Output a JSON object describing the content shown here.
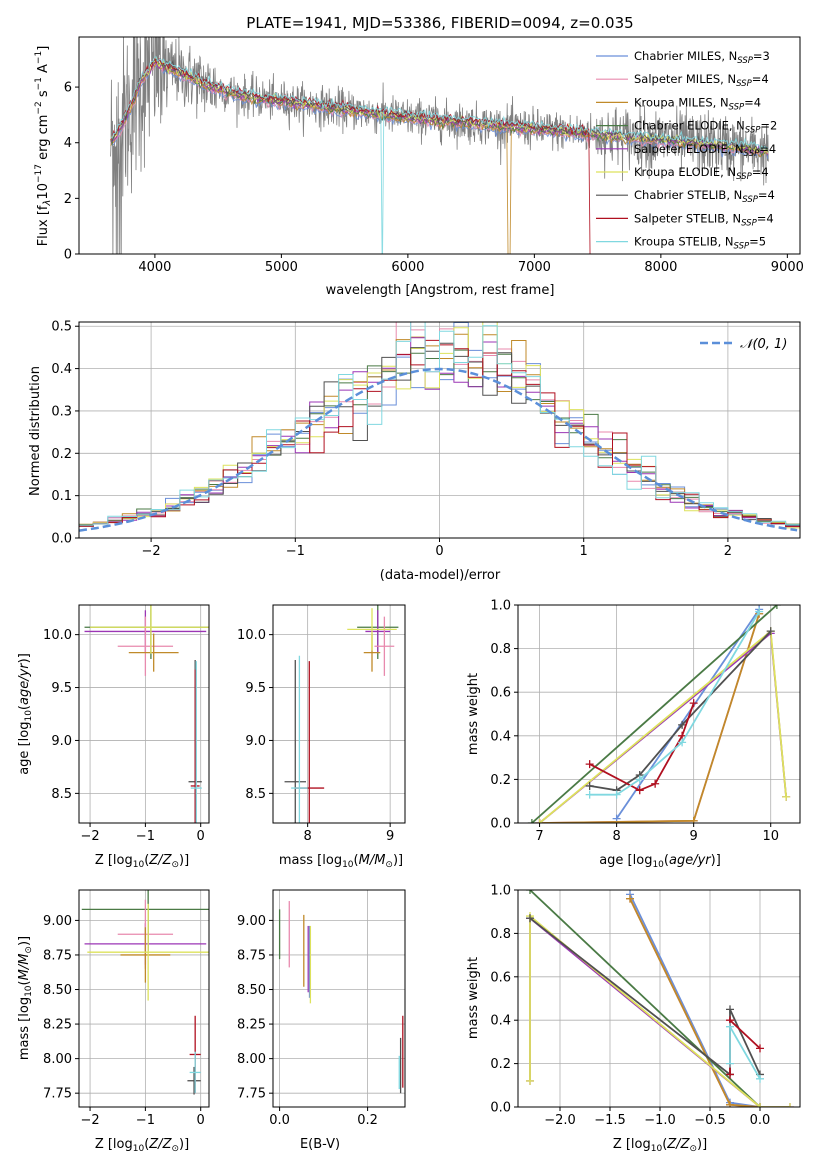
{
  "title": "PLATE=1941, MJD=53386, FIBERID=0094, z=0.035",
  "colors": {
    "Chabrier MILES": "#6a8fd9",
    "Salpeter MILES": "#e88aae",
    "Kroupa MILES": "#c08a2a",
    "Chabrier ELODIE": "#4a7a45",
    "Salpeter ELODIE": "#9b36b5",
    "Kroupa ELODIE": "#dde25c",
    "Chabrier STELIB": "#505050",
    "Salpeter STELIB": "#b01020",
    "Kroupa STELIB": "#80d8e0",
    "data": "#808080",
    "fit_orange": "#e8803a",
    "normal": "#5b8fd9"
  },
  "legend": [
    {
      "name": "Chabrier MILES",
      "n": "3"
    },
    {
      "name": "Salpeter MILES",
      "n": "4"
    },
    {
      "name": "Kroupa MILES",
      "n": "4"
    },
    {
      "name": "Chabrier ELODIE",
      "n": "2"
    },
    {
      "name": "Salpeter ELODIE",
      "n": "4"
    },
    {
      "name": "Kroupa ELODIE",
      "n": "4"
    },
    {
      "name": "Chabrier STELIB",
      "n": "4"
    },
    {
      "name": "Salpeter STELIB",
      "n": "4"
    },
    {
      "name": "Kroupa STELIB",
      "n": "5"
    }
  ],
  "normal_legend": "𝒩(0, 1)",
  "chart_data": [
    {
      "id": "spectrum",
      "type": "line",
      "title": "PLATE=1941, MJD=53386, FIBERID=0094, z=0.035",
      "xlabel": "wavelength [Angstrom, rest frame]",
      "ylabel": "Flux [f_λ 10^-17 erg cm^-2 s^-1 A^-1]",
      "xlim": [
        3400,
        9100
      ],
      "ylim": [
        0,
        7.8
      ],
      "xticks": [
        4000,
        5000,
        6000,
        7000,
        8000,
        9000
      ],
      "yticks": [
        0,
        2,
        4,
        6
      ],
      "model_continuum": {
        "x": [
          3650,
          3700,
          3800,
          3900,
          4000,
          4100,
          4200,
          4400,
          4600,
          4800,
          5000,
          5500,
          6000,
          6500,
          7000,
          7500,
          8000,
          8500,
          8800
        ],
        "y": [
          4.0,
          4.3,
          5.2,
          6.3,
          6.9,
          6.7,
          6.5,
          6.1,
          5.8,
          5.6,
          5.5,
          5.2,
          4.9,
          4.7,
          4.5,
          4.3,
          4.1,
          3.9,
          3.7
        ]
      }
    },
    {
      "id": "residuals",
      "type": "step",
      "xlabel": "(data-model)/error",
      "ylabel": "Normed distribution",
      "xlim": [
        -2.5,
        2.5
      ],
      "ylim": [
        0,
        0.51
      ],
      "xticks": [
        -2,
        -1,
        0,
        1,
        2
      ],
      "yticks": [
        0.0,
        0.1,
        0.2,
        0.3,
        0.4,
        0.5
      ],
      "bin_width": 0.1,
      "series": [
        {
          "name": "N(0,1)",
          "function": "standard normal pdf",
          "style": "dashed"
        }
      ]
    },
    {
      "id": "age_vs_Z",
      "type": "errorbar",
      "xlabel": "Z [log10(Z/Z_sun)]",
      "ylabel": "age [log10(age/yr)]",
      "xlim": [
        -2.2,
        0.15
      ],
      "ylim": [
        8.22,
        10.28
      ],
      "xticks": [
        -2,
        -1,
        0
      ],
      "yticks": [
        8.5,
        9.0,
        9.5,
        10.0
      ],
      "points": [
        {
          "model": "Chabrier ELODIE",
          "x": -0.9,
          "xerr": 1.2,
          "y": 10.07,
          "yerr": 0.3
        },
        {
          "model": "Salpeter ELODIE",
          "x": -1.0,
          "xerr": 1.1,
          "y": 10.03,
          "yerr": 0.2
        },
        {
          "model": "Salpeter MILES",
          "x": -1.0,
          "xerr": 0.5,
          "y": 9.89,
          "yerr": 0.28
        },
        {
          "model": "Kroupa MILES",
          "x": -0.85,
          "xerr": 0.45,
          "y": 9.83,
          "yerr": 0.18
        },
        {
          "model": "Kroupa ELODIE",
          "x": -0.9,
          "xerr": 1.1,
          "y": 10.07,
          "yerr": 0.25
        },
        {
          "model": "Chabrier STELIB",
          "x": -0.1,
          "xerr": 0.12,
          "y": 8.61,
          "yerr": 1.15
        },
        {
          "model": "Salpeter STELIB",
          "x": -0.1,
          "xerr": 0.08,
          "y": 8.57,
          "yerr": 1.1
        },
        {
          "model": "Kroupa STELIB",
          "x": -0.08,
          "xerr": 0.1,
          "y": 8.55,
          "yerr": 1.2
        }
      ]
    },
    {
      "id": "age_vs_mass",
      "type": "errorbar",
      "xlabel": "mass [log10(M/M_sun)]",
      "ylabel": "",
      "xlim": [
        7.58,
        9.18
      ],
      "ylim": [
        8.22,
        10.28
      ],
      "xticks": [
        8,
        9
      ],
      "yticks": [
        8.5,
        9.0,
        9.5,
        10.0
      ],
      "points": [
        {
          "model": "Chabrier ELODIE",
          "x": 8.85,
          "xerr": 0.25,
          "y": 10.07,
          "yerr": 0.3
        },
        {
          "model": "Salpeter ELODIE",
          "x": 8.85,
          "xerr": 0.15,
          "y": 10.03,
          "yerr": 0.2
        },
        {
          "model": "Salpeter MILES",
          "x": 8.93,
          "xerr": 0.12,
          "y": 9.89,
          "yerr": 0.28
        },
        {
          "model": "Kroupa MILES",
          "x": 8.78,
          "xerr": 0.1,
          "y": 9.83,
          "yerr": 0.18
        },
        {
          "model": "Kroupa ELODIE",
          "x": 8.78,
          "xerr": 0.3,
          "y": 10.05,
          "yerr": 0.2
        },
        {
          "model": "Chabrier STELIB",
          "x": 7.85,
          "xerr": 0.13,
          "y": 8.61,
          "yerr": 1.15
        },
        {
          "model": "Salpeter STELIB",
          "x": 8.02,
          "xerr": 0.18,
          "y": 8.55,
          "yerr": 1.2
        },
        {
          "model": "Kroupa STELIB",
          "x": 7.9,
          "xerr": 0.1,
          "y": 8.55,
          "yerr": 1.25
        }
      ]
    },
    {
      "id": "massweight_vs_age",
      "type": "line",
      "xlabel": "age [log10(age/yr)]",
      "ylabel": "mass weight",
      "xlim": [
        6.72,
        10.38
      ],
      "ylim": [
        0,
        1.0
      ],
      "xticks": [
        7,
        8,
        9,
        10
      ],
      "yticks": [
        0.0,
        0.2,
        0.4,
        0.6,
        0.8,
        1.0
      ],
      "series": [
        {
          "name": "Chabrier MILES",
          "x": [
            8.0,
            9.85
          ],
          "y": [
            0.02,
            0.98
          ]
        },
        {
          "name": "Salpeter MILES",
          "x": [
            7.0,
            9.0,
            9.85
          ],
          "y": [
            0.0,
            0.01,
            0.96
          ]
        },
        {
          "name": "Kroupa MILES",
          "x": [
            7.0,
            9.0,
            9.85
          ],
          "y": [
            0.0,
            0.01,
            0.96
          ]
        },
        {
          "name": "Chabrier ELODIE",
          "x": [
            6.9,
            10.08
          ],
          "y": [
            0.0,
            1.0
          ]
        },
        {
          "name": "Salpeter ELODIE",
          "x": [
            7.0,
            10.0,
            10.2
          ],
          "y": [
            0.0,
            0.87,
            0.12
          ]
        },
        {
          "name": "Kroupa ELODIE",
          "x": [
            7.0,
            10.0,
            10.2
          ],
          "y": [
            0.0,
            0.88,
            0.12
          ]
        },
        {
          "name": "Chabrier STELIB",
          "x": [
            7.65,
            8.0,
            8.3,
            8.85,
            10.0
          ],
          "y": [
            0.17,
            0.15,
            0.22,
            0.45,
            0.88
          ]
        },
        {
          "name": "Salpeter STELIB",
          "x": [
            7.65,
            8.3,
            8.5,
            8.85,
            9.0
          ],
          "y": [
            0.27,
            0.15,
            0.18,
            0.4,
            0.55
          ]
        },
        {
          "name": "Kroupa STELIB",
          "x": [
            7.65,
            8.0,
            8.3,
            8.85,
            9.85
          ],
          "y": [
            0.13,
            0.13,
            0.2,
            0.37,
            0.97
          ]
        }
      ]
    },
    {
      "id": "mass_vs_Z",
      "type": "errorbar",
      "xlabel": "Z [log10(Z/Z_sun)]",
      "ylabel": "mass [log10(M/M_sun)]",
      "xlim": [
        -2.2,
        0.15
      ],
      "ylim": [
        7.65,
        9.22
      ],
      "xticks": [
        -2,
        -1,
        0
      ],
      "yticks": [
        7.75,
        8.0,
        8.25,
        8.5,
        8.75,
        9.0
      ],
      "points": [
        {
          "model": "Chabrier ELODIE",
          "x": -0.95,
          "xerr": 1.2,
          "y": 9.08,
          "yerr": 0.3
        },
        {
          "model": "Salpeter ELODIE",
          "x": -1.0,
          "xerr": 1.1,
          "y": 8.83,
          "yerr": 0.15
        },
        {
          "model": "Salpeter MILES",
          "x": -1.0,
          "xerr": 0.5,
          "y": 8.9,
          "yerr": 0.25
        },
        {
          "model": "Kroupa MILES",
          "x": -1.0,
          "xerr": 0.45,
          "y": 8.75,
          "yerr": 0.2
        },
        {
          "model": "Kroupa ELODIE",
          "x": -0.95,
          "xerr": 1.1,
          "y": 8.77,
          "yerr": 0.35
        },
        {
          "model": "Chabrier STELIB",
          "x": -0.12,
          "xerr": 0.12,
          "y": 7.84,
          "yerr": 0.1
        },
        {
          "model": "Salpeter STELIB",
          "x": -0.1,
          "xerr": 0.1,
          "y": 8.03,
          "yerr": 0.28
        },
        {
          "model": "Kroupa STELIB",
          "x": -0.1,
          "xerr": 0.1,
          "y": 7.9,
          "yerr": 0.15
        }
      ]
    },
    {
      "id": "mass_vs_EBV",
      "type": "errorbar",
      "xlabel": "E(B-V)",
      "ylabel": "",
      "xlim": [
        -0.015,
        0.285
      ],
      "ylim": [
        7.65,
        9.22
      ],
      "xticks": [
        0.0,
        0.2
      ],
      "yticks": [
        7.75,
        8.0,
        8.25,
        8.5,
        8.75,
        9.0
      ],
      "points": [
        {
          "model": "Chabrier ELODIE",
          "x": 0.0,
          "y": 8.9,
          "yerr": 0.18
        },
        {
          "model": "Salpeter MILES",
          "x": 0.022,
          "y": 8.9,
          "yerr": 0.24
        },
        {
          "model": "Kroupa MILES",
          "x": 0.055,
          "y": 8.78,
          "yerr": 0.26
        },
        {
          "model": "Salpeter ELODIE",
          "x": 0.065,
          "y": 8.72,
          "yerr": 0.24
        },
        {
          "model": "Chabrier MILES",
          "x": 0.068,
          "y": 8.7,
          "yerr": 0.26
        },
        {
          "model": "Kroupa ELODIE",
          "x": 0.07,
          "y": 8.68,
          "yerr": 0.28
        },
        {
          "model": "Chabrier STELIB",
          "x": 0.275,
          "y": 7.95,
          "yerr": 0.2
        },
        {
          "model": "Salpeter STELIB",
          "x": 0.28,
          "y": 8.05,
          "yerr": 0.26
        },
        {
          "model": "Kroupa STELIB",
          "x": 0.272,
          "y": 7.9,
          "yerr": 0.12
        }
      ]
    },
    {
      "id": "massweight_vs_Z",
      "type": "line",
      "xlabel": "Z [log10(Z/Z_sun)]",
      "ylabel": "mass weight",
      "xlim": [
        -2.42,
        0.4
      ],
      "ylim": [
        0,
        1.0
      ],
      "xticks": [
        -2.0,
        -1.5,
        -1.0,
        -0.5,
        0.0
      ],
      "yticks": [
        0.0,
        0.2,
        0.4,
        0.6,
        0.8,
        1.0
      ],
      "series": [
        {
          "name": "Chabrier MILES",
          "x": [
            -1.3,
            -0.3,
            0.0
          ],
          "y": [
            0.98,
            0.02,
            0.0
          ]
        },
        {
          "name": "Salpeter MILES",
          "x": [
            -1.3,
            -0.3,
            0.0
          ],
          "y": [
            0.96,
            0.01,
            0.0
          ]
        },
        {
          "name": "Kroupa MILES",
          "x": [
            -1.3,
            -0.3,
            0.0
          ],
          "y": [
            0.96,
            0.01,
            0.0
          ]
        },
        {
          "name": "Chabrier ELODIE",
          "x": [
            -2.3,
            0.0
          ],
          "y": [
            1.0,
            0.0
          ]
        },
        {
          "name": "Salpeter ELODIE",
          "x": [
            -2.3,
            -2.3,
            0.0,
            0.3
          ],
          "y": [
            0.12,
            0.87,
            0.0,
            0.0
          ]
        },
        {
          "name": "Kroupa ELODIE",
          "x": [
            -2.3,
            -2.3,
            0.0,
            0.3
          ],
          "y": [
            0.12,
            0.88,
            0.0,
            0.0
          ]
        },
        {
          "name": "Chabrier STELIB",
          "x": [
            -2.3,
            -0.3,
            -0.3,
            0.0
          ],
          "y": [
            0.87,
            0.15,
            0.45,
            0.15
          ]
        },
        {
          "name": "Salpeter STELIB",
          "x": [
            -0.3,
            -0.3,
            0.0
          ],
          "y": [
            0.15,
            0.4,
            0.27
          ]
        },
        {
          "name": "Kroupa STELIB",
          "x": [
            -0.3,
            -0.3,
            0.0
          ],
          "y": [
            0.2,
            0.37,
            0.13
          ]
        }
      ]
    }
  ]
}
